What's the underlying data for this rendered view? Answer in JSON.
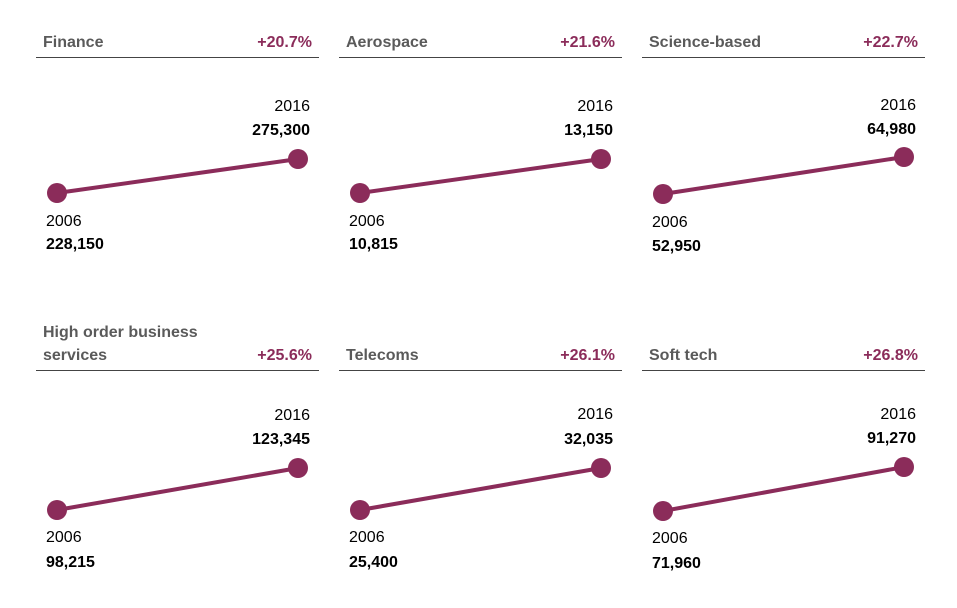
{
  "colors": {
    "accent": "#8b2c5a",
    "title_text": "#5a5a5a",
    "rule": "#444444"
  },
  "chart_data": [
    {
      "type": "line",
      "title": "Finance",
      "change": "+20.7%",
      "x": [
        "2006",
        "2016"
      ],
      "values": [
        228150,
        275300
      ],
      "value_labels": [
        "228,150",
        "275,300"
      ]
    },
    {
      "type": "line",
      "title": "Aerospace",
      "change": "+21.6%",
      "x": [
        "2006",
        "2016"
      ],
      "values": [
        10815,
        13150
      ],
      "value_labels": [
        "10,815",
        "13,150"
      ]
    },
    {
      "type": "line",
      "title": "Science-based",
      "change": "+22.7%",
      "x": [
        "2006",
        "2016"
      ],
      "values": [
        52950,
        64980
      ],
      "value_labels": [
        "52,950",
        "64,980"
      ]
    },
    {
      "type": "line",
      "title": "High order business services",
      "change": "+25.6%",
      "x": [
        "2006",
        "2016"
      ],
      "values": [
        98215,
        123345
      ],
      "value_labels": [
        "98,215",
        "123,345"
      ]
    },
    {
      "type": "line",
      "title": "Telecoms",
      "change": "+26.1%",
      "x": [
        "2006",
        "2016"
      ],
      "values": [
        25400,
        32035
      ],
      "value_labels": [
        "25,400",
        "32,035"
      ]
    },
    {
      "type": "line",
      "title": "Soft tech",
      "change": "+26.8%",
      "x": [
        "2006",
        "2016"
      ],
      "values": [
        71960,
        91270
      ],
      "value_labels": [
        "71,960",
        "91,270"
      ]
    }
  ]
}
